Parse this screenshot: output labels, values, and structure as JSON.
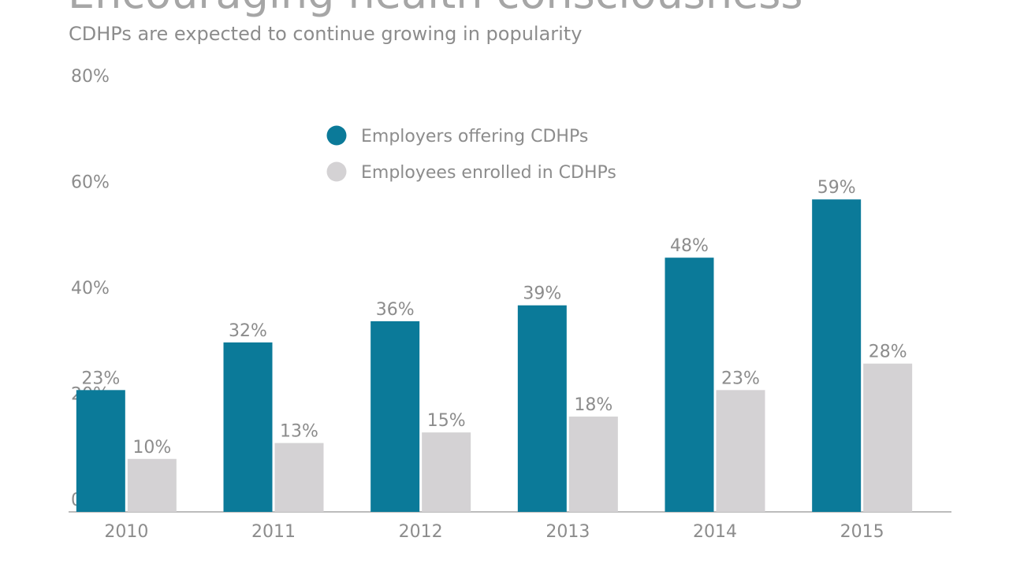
{
  "title": "Encouraging health consciousness",
  "subtitle": "CDHPs are expected to continue growing in popularity",
  "chart_data": {
    "type": "bar",
    "categories": [
      "2010",
      "2011",
      "2012",
      "2013",
      "2014",
      "2015"
    ],
    "series": [
      {
        "name": "Employers offering CDHPs",
        "values": [
          23,
          32,
          36,
          39,
          48,
          59
        ],
        "labels": [
          "23%",
          "32%",
          "36%",
          "39%",
          "48%",
          "59%"
        ],
        "color": "#0b7a99"
      },
      {
        "name": "Employees enrolled in CDHPs",
        "values": [
          10,
          13,
          15,
          18,
          23,
          28
        ],
        "labels": [
          "10%",
          "13%",
          "15%",
          "18%",
          "23%",
          "28%"
        ],
        "color": "#d4d2d4"
      }
    ],
    "ylim": [
      0,
      80
    ],
    "yticks": [
      "0%",
      "20%",
      "40%",
      "60%",
      "80%"
    ],
    "ytick_values": [
      0,
      20,
      40,
      60,
      80
    ],
    "grid": false,
    "legend_placement": "top-center"
  }
}
